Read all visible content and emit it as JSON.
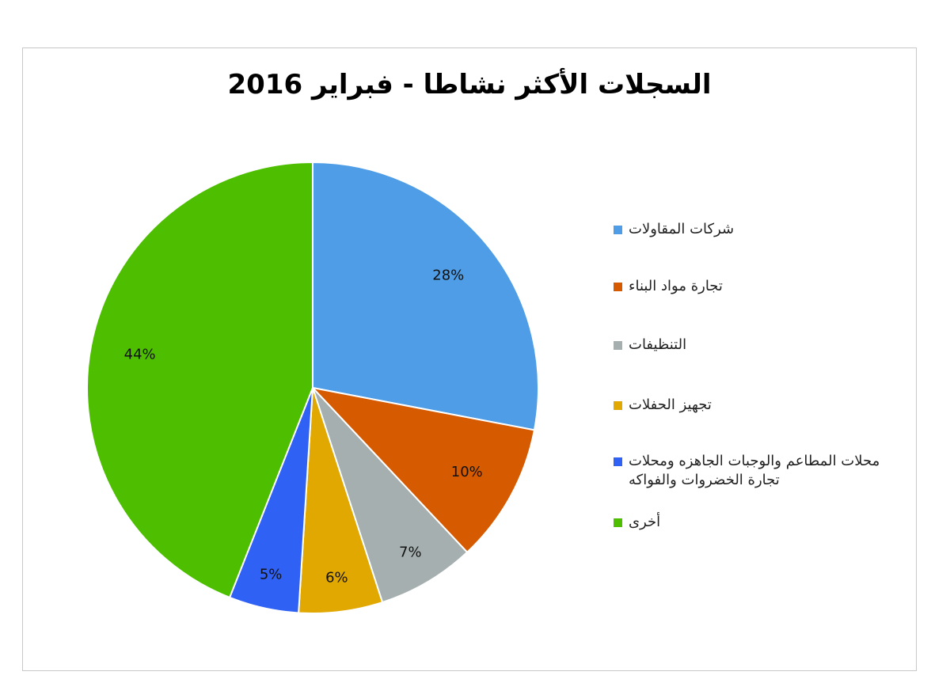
{
  "chart_data": {
    "type": "pie",
    "title": "السجلات الأكثر نشاطا - فبراير 2016",
    "categories": [
      "شركات المقاولات",
      "تجارة مواد البناء",
      "التنظيفات",
      "تجهيز الحفلات",
      "محلات المطاعم والوجبات الجاهزه ومحلات تجارة الخضروات والفواكه",
      "أخرى"
    ],
    "values": [
      28,
      10,
      7,
      6,
      5,
      44
    ],
    "value_labels": [
      "28%",
      "10%",
      "7%",
      "6%",
      "5%",
      "44%"
    ],
    "colors": [
      "#4e9de6",
      "#d65a00",
      "#a5afaf",
      "#e0a800",
      "#3061f5",
      "#4dbf00"
    ],
    "legend": "right"
  }
}
